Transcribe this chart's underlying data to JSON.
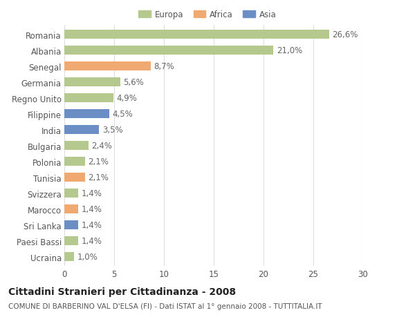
{
  "categories": [
    "Romania",
    "Albania",
    "Senegal",
    "Germania",
    "Regno Unito",
    "Filippine",
    "India",
    "Bulgaria",
    "Polonia",
    "Tunisia",
    "Svizzera",
    "Marocco",
    "Sri Lanka",
    "Paesi Bassi",
    "Ucraina"
  ],
  "values": [
    26.6,
    21.0,
    8.7,
    5.6,
    4.9,
    4.5,
    3.5,
    2.4,
    2.1,
    2.1,
    1.4,
    1.4,
    1.4,
    1.4,
    1.0
  ],
  "labels": [
    "26,6%",
    "21,0%",
    "8,7%",
    "5,6%",
    "4,9%",
    "4,5%",
    "3,5%",
    "2,4%",
    "2,1%",
    "2,1%",
    "1,4%",
    "1,4%",
    "1,4%",
    "1,4%",
    "1,0%"
  ],
  "continents": [
    "Europa",
    "Europa",
    "Africa",
    "Europa",
    "Europa",
    "Asia",
    "Asia",
    "Europa",
    "Europa",
    "Africa",
    "Europa",
    "Africa",
    "Asia",
    "Europa",
    "Europa"
  ],
  "colors": {
    "Europa": "#b5c98e",
    "Africa": "#f0a970",
    "Asia": "#6b8ec4"
  },
  "legend_entries": [
    "Europa",
    "Africa",
    "Asia"
  ],
  "legend_colors": [
    "#b5c98e",
    "#f0a970",
    "#6b8ec4"
  ],
  "title1": "Cittadini Stranieri per Cittadinanza - 2008",
  "title2": "COMUNE DI BARBERINO VAL D'ELSA (FI) - Dati ISTAT al 1° gennaio 2008 - TUTTITALIA.IT",
  "xlim": [
    0,
    30
  ],
  "xticks": [
    0,
    5,
    10,
    15,
    20,
    25,
    30
  ],
  "background_color": "#ffffff",
  "grid_color": "#dddddd",
  "bar_height": 0.55,
  "label_fontsize": 8.5,
  "tick_fontsize": 8.5,
  "title1_fontsize": 10,
  "title2_fontsize": 7.5
}
